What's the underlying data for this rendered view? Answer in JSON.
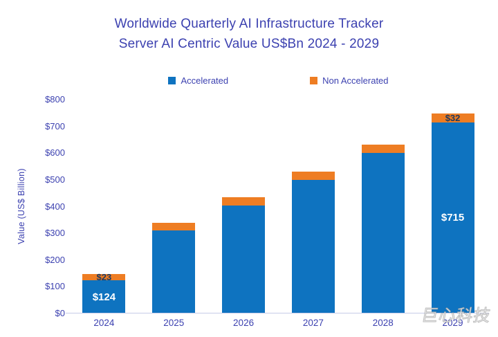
{
  "title": {
    "line1": "Worldwide Quarterly AI Infrastructure Tracker",
    "line2": "Server AI Centric Value US$Bn 2024 - 2029"
  },
  "watermark": "巨心科技",
  "chart_data": {
    "type": "bar",
    "stacked": true,
    "title": "Worldwide Quarterly AI Infrastructure Tracker Server AI Centric Value US$Bn 2024 - 2029",
    "categories": [
      "2024",
      "2025",
      "2026",
      "2027",
      "2028",
      "2029"
    ],
    "series": [
      {
        "name": "Accelerated",
        "color": "#0e73c0",
        "values": [
          124,
          310,
          405,
          500,
          600,
          715
        ],
        "labels": [
          "$124",
          null,
          null,
          null,
          null,
          "$715"
        ],
        "label_color": "#ffffff"
      },
      {
        "name": "Non Accelerated",
        "color": "#ee7d23",
        "values": [
          23,
          28,
          30,
          30,
          32,
          32
        ],
        "labels": [
          "$23",
          null,
          null,
          null,
          null,
          "$32"
        ],
        "label_color": "#1f3a60"
      }
    ],
    "xlabel": "",
    "ylabel": "Value  (US$ Billion)",
    "ylim": [
      0,
      800
    ],
    "y_ticks": {
      "values": [
        0,
        100,
        200,
        300,
        400,
        500,
        600,
        700,
        800
      ],
      "labels": [
        "$0",
        "$100",
        "$200",
        "$300",
        "$400",
        "$500",
        "$600",
        "$700",
        "$800"
      ]
    },
    "grid": false,
    "legend_position": "top"
  }
}
